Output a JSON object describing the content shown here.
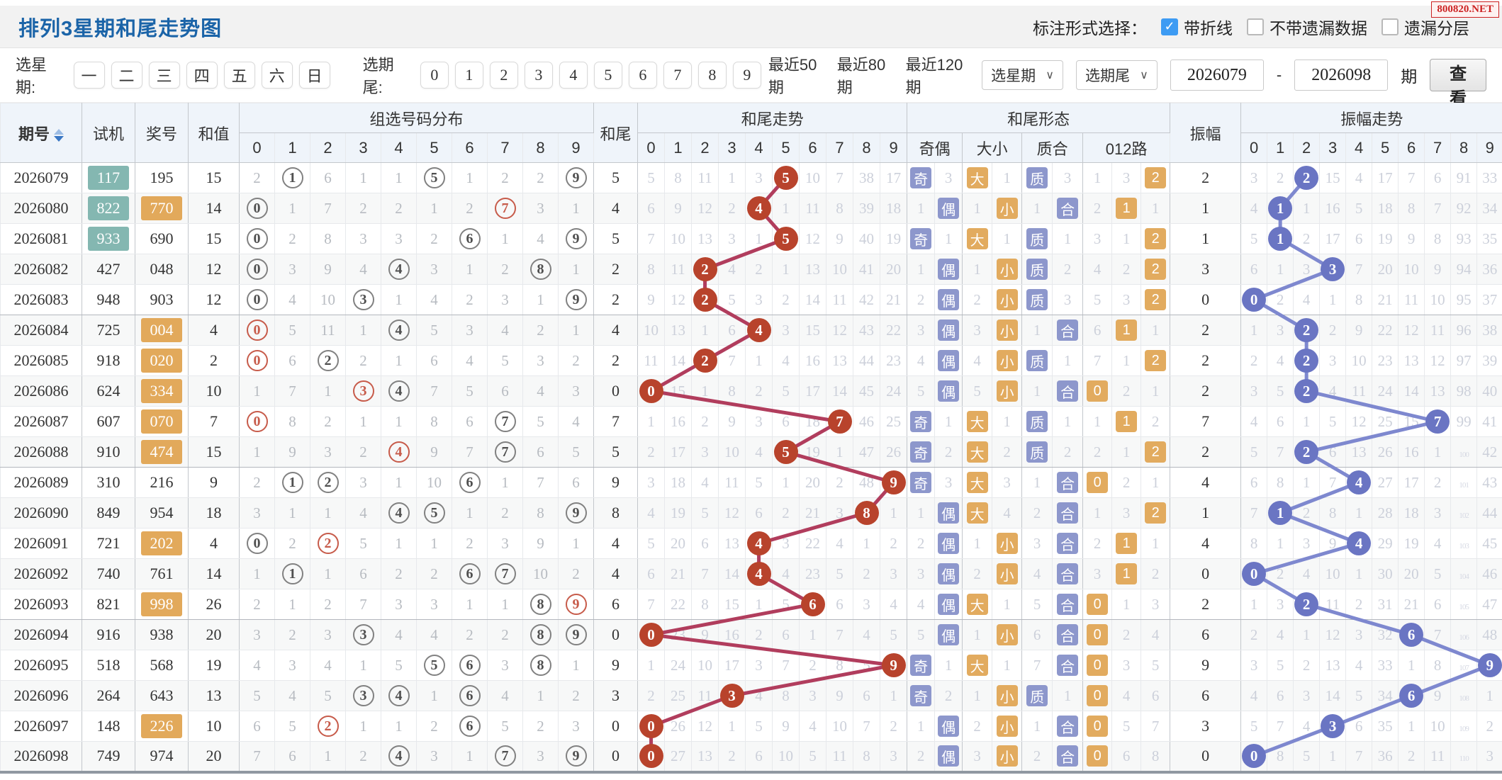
{
  "title": "排列3星期和尾走势图",
  "watermark": "800820.NET",
  "annotation": {
    "label": "标注形式选择：",
    "options": [
      {
        "label": "带折线",
        "checked": true
      },
      {
        "label": "不带遗漏数据",
        "checked": false
      },
      {
        "label": "遗漏分层",
        "checked": false
      }
    ]
  },
  "filters": {
    "week_label": "选星期:",
    "weeks": [
      "一",
      "二",
      "三",
      "四",
      "五",
      "六",
      "日"
    ],
    "tail_label": "选期尾:",
    "tails": [
      "0",
      "1",
      "2",
      "3",
      "4",
      "5",
      "6",
      "7",
      "8",
      "9"
    ],
    "ranges": [
      "最近50期",
      "最近80期",
      "最近120期"
    ],
    "week_select": "选星期",
    "tail_select": "选期尾",
    "from": "2026079",
    "to": "2026098",
    "dash": "-",
    "unit": "期",
    "view": "查看"
  },
  "header": {
    "period": "期号",
    "shiji": "试机",
    "prize": "奖号",
    "sum": "和值",
    "dist": "组选号码分布",
    "tail": "和尾",
    "tail_trend": "和尾走势",
    "pattern": "和尾形态",
    "oe": "奇偶",
    "dx": "大小",
    "zh": "质合",
    "lu": "012路",
    "amp": "振幅",
    "amp_trend": "振幅走势",
    "digits": [
      "0",
      "1",
      "2",
      "3",
      "4",
      "5",
      "6",
      "7",
      "8",
      "9"
    ]
  },
  "colors": {
    "title_blue": "#1b64a8",
    "checkbox_blue": "#3d9bf3",
    "watermark_red": "#cc2222",
    "hit_circle_red": "#b8432c",
    "line_red": "#b13d5d",
    "hit_circle_blue": "#6a75c3",
    "line_blue": "#7e88cf",
    "badge_purple": "#8d97cc",
    "badge_orange": "#e2ab5f",
    "highlight_teal": "#84b7b1",
    "highlight_orange": "#e2a95b"
  },
  "rows": [
    {
      "period": "2026079",
      "shiji": "117",
      "shijiPair": true,
      "prize": "195",
      "prizePair": false,
      "sum": 15,
      "dist": [
        2,
        1,
        6,
        1,
        1,
        5,
        1,
        2,
        2,
        9
      ],
      "dg": [
        1,
        5,
        9
      ],
      "dr": [],
      "tail": 5,
      "tt": [
        5,
        8,
        11,
        1,
        3,
        5,
        10,
        7,
        38,
        17
      ],
      "th": 5,
      "qo": [
        "奇",
        3
      ],
      "dx": [
        "大",
        1
      ],
      "zh": [
        "质",
        3
      ],
      "lu": [
        1,
        3,
        "2"
      ],
      "amp": 2,
      "at": [
        3,
        2,
        2,
        15,
        4,
        17,
        7,
        6,
        91,
        33
      ],
      "ah": 2
    },
    {
      "period": "2026080",
      "shiji": "822",
      "shijiPair": true,
      "prize": "770",
      "prizePair": true,
      "sum": 14,
      "dist": [
        0,
        1,
        7,
        2,
        2,
        1,
        2,
        7,
        3,
        1
      ],
      "dg": [
        0
      ],
      "dr": [
        7
      ],
      "tail": 4,
      "tt": [
        6,
        9,
        12,
        2,
        4,
        1,
        11,
        8,
        39,
        18
      ],
      "th": 4,
      "qo": [
        1,
        "偶"
      ],
      "dx": [
        1,
        "小"
      ],
      "zh": [
        1,
        "合"
      ],
      "lu": [
        2,
        "1",
        1
      ],
      "amp": 1,
      "at": [
        4,
        1,
        1,
        16,
        5,
        18,
        8,
        7,
        92,
        34
      ],
      "ah": 1
    },
    {
      "period": "2026081",
      "shiji": "933",
      "shijiPair": true,
      "prize": "690",
      "prizePair": false,
      "sum": 15,
      "dist": [
        0,
        2,
        8,
        3,
        3,
        2,
        6,
        1,
        4,
        9
      ],
      "dg": [
        0,
        6,
        9
      ],
      "dr": [],
      "tail": 5,
      "tt": [
        7,
        10,
        13,
        3,
        1,
        5,
        12,
        9,
        40,
        19
      ],
      "th": 5,
      "qo": [
        "奇",
        1
      ],
      "dx": [
        "大",
        1
      ],
      "zh": [
        "质",
        1
      ],
      "lu": [
        3,
        1,
        "2"
      ],
      "amp": 1,
      "at": [
        5,
        1,
        2,
        17,
        6,
        19,
        9,
        8,
        93,
        35
      ],
      "ah": 1
    },
    {
      "period": "2026082",
      "shiji": "427",
      "shijiPair": false,
      "prize": "048",
      "prizePair": false,
      "sum": 12,
      "dist": [
        0,
        3,
        9,
        4,
        4,
        3,
        1,
        2,
        8,
        1
      ],
      "dg": [
        0,
        4,
        8
      ],
      "dr": [],
      "tail": 2,
      "tt": [
        8,
        11,
        2,
        4,
        2,
        1,
        13,
        10,
        41,
        20
      ],
      "th": 2,
      "qo": [
        1,
        "偶"
      ],
      "dx": [
        1,
        "小"
      ],
      "zh": [
        "质",
        2
      ],
      "lu": [
        4,
        2,
        "2"
      ],
      "amp": 3,
      "at": [
        6,
        1,
        3,
        3,
        7,
        20,
        10,
        9,
        94,
        36
      ],
      "ah": 3
    },
    {
      "period": "2026083",
      "shiji": "948",
      "shijiPair": false,
      "prize": "903",
      "prizePair": false,
      "sum": 12,
      "dist": [
        0,
        4,
        10,
        3,
        1,
        4,
        2,
        3,
        1,
        9
      ],
      "dg": [
        0,
        3,
        9
      ],
      "dr": [],
      "tail": 2,
      "tt": [
        9,
        12,
        2,
        5,
        3,
        2,
        14,
        11,
        42,
        21
      ],
      "th": 2,
      "qo": [
        2,
        "偶"
      ],
      "dx": [
        2,
        "小"
      ],
      "zh": [
        "质",
        3
      ],
      "lu": [
        5,
        3,
        "2"
      ],
      "amp": 0,
      "at": [
        0,
        2,
        4,
        1,
        8,
        21,
        11,
        10,
        95,
        37
      ],
      "ah": 0
    },
    {
      "period": "2026084",
      "shiji": "725",
      "shijiPair": false,
      "prize": "004",
      "prizePair": true,
      "sum": 4,
      "dist": [
        0,
        5,
        11,
        1,
        4,
        5,
        3,
        4,
        2,
        1
      ],
      "dg": [
        4
      ],
      "dr": [
        0
      ],
      "tail": 4,
      "tt": [
        10,
        13,
        1,
        6,
        4,
        3,
        15,
        12,
        43,
        22
      ],
      "th": 4,
      "qo": [
        3,
        "偶"
      ],
      "dx": [
        3,
        "小"
      ],
      "zh": [
        1,
        "合"
      ],
      "lu": [
        6,
        "1",
        1
      ],
      "amp": 2,
      "at": [
        1,
        3,
        2,
        2,
        9,
        22,
        12,
        11,
        96,
        38
      ],
      "ah": 2
    },
    {
      "period": "2026085",
      "shiji": "918",
      "shijiPair": false,
      "prize": "020",
      "prizePair": true,
      "sum": 2,
      "dist": [
        0,
        6,
        2,
        2,
        1,
        6,
        4,
        5,
        3,
        2
      ],
      "dg": [
        2
      ],
      "dr": [
        0
      ],
      "tail": 2,
      "tt": [
        11,
        14,
        2,
        7,
        1,
        4,
        16,
        13,
        44,
        23
      ],
      "th": 2,
      "qo": [
        4,
        "偶"
      ],
      "dx": [
        4,
        "小"
      ],
      "zh": [
        "质",
        1
      ],
      "lu": [
        7,
        1,
        "2"
      ],
      "amp": 2,
      "at": [
        2,
        4,
        2,
        3,
        10,
        23,
        13,
        12,
        97,
        39
      ],
      "ah": 2
    },
    {
      "period": "2026086",
      "shiji": "624",
      "shijiPair": false,
      "prize": "334",
      "prizePair": true,
      "sum": 10,
      "dist": [
        1,
        7,
        1,
        3,
        4,
        7,
        5,
        6,
        4,
        3
      ],
      "dg": [
        4
      ],
      "dr": [
        3
      ],
      "tail": 0,
      "tt": [
        0,
        15,
        1,
        8,
        2,
        5,
        17,
        14,
        45,
        24
      ],
      "th": 0,
      "qo": [
        5,
        "偶"
      ],
      "dx": [
        5,
        "小"
      ],
      "zh": [
        1,
        "合"
      ],
      "lu": [
        "0",
        2,
        1
      ],
      "amp": 2,
      "at": [
        3,
        5,
        2,
        4,
        11,
        24,
        14,
        13,
        98,
        40
      ],
      "ah": 2
    },
    {
      "period": "2026087",
      "shiji": "607",
      "shijiPair": false,
      "prize": "070",
      "prizePair": true,
      "sum": 7,
      "dist": [
        0,
        8,
        2,
        1,
        1,
        8,
        6,
        7,
        5,
        4
      ],
      "dg": [
        7
      ],
      "dr": [
        0
      ],
      "tail": 7,
      "tt": [
        1,
        16,
        2,
        9,
        3,
        6,
        18,
        7,
        46,
        25
      ],
      "th": 7,
      "qo": [
        "奇",
        1
      ],
      "dx": [
        "大",
        1
      ],
      "zh": [
        "质",
        1
      ],
      "lu": [
        1,
        "1",
        2
      ],
      "amp": 7,
      "at": [
        4,
        6,
        1,
        5,
        12,
        25,
        15,
        7,
        99,
        41
      ],
      "ah": 7
    },
    {
      "period": "2026088",
      "shiji": "910",
      "shijiPair": false,
      "prize": "474",
      "prizePair": true,
      "sum": 15,
      "dist": [
        1,
        9,
        3,
        2,
        4,
        9,
        7,
        7,
        6,
        5
      ],
      "dg": [
        7
      ],
      "dr": [
        4
      ],
      "tail": 5,
      "tt": [
        2,
        17,
        3,
        10,
        4,
        5,
        19,
        1,
        47,
        26
      ],
      "th": 5,
      "qo": [
        "奇",
        2
      ],
      "dx": [
        "大",
        2
      ],
      "zh": [
        "质",
        2
      ],
      "lu": [
        2,
        1,
        "2"
      ],
      "amp": 2,
      "at": [
        5,
        7,
        2,
        6,
        13,
        26,
        16,
        1,
        100,
        42
      ],
      "ah": 2
    },
    {
      "period": "2026089",
      "shiji": "310",
      "shijiPair": false,
      "prize": "216",
      "prizePair": false,
      "sum": 9,
      "dist": [
        2,
        1,
        2,
        3,
        1,
        10,
        6,
        1,
        7,
        6
      ],
      "dg": [
        1,
        2,
        6
      ],
      "dr": [],
      "tail": 9,
      "tt": [
        3,
        18,
        4,
        11,
        5,
        1,
        20,
        2,
        48,
        9
      ],
      "th": 9,
      "qo": [
        "奇",
        3
      ],
      "dx": [
        "大",
        3
      ],
      "zh": [
        1,
        "合"
      ],
      "lu": [
        "0",
        2,
        1
      ],
      "amp": 4,
      "at": [
        6,
        8,
        1,
        7,
        4,
        27,
        17,
        2,
        101,
        43
      ],
      "ah": 4
    },
    {
      "period": "2026090",
      "shiji": "849",
      "shijiPair": false,
      "prize": "954",
      "prizePair": false,
      "sum": 18,
      "dist": [
        3,
        1,
        1,
        4,
        4,
        5,
        1,
        2,
        8,
        9
      ],
      "dg": [
        4,
        5,
        9
      ],
      "dr": [],
      "tail": 8,
      "tt": [
        4,
        19,
        5,
        12,
        6,
        2,
        21,
        3,
        8,
        1
      ],
      "th": 8,
      "qo": [
        1,
        "偶"
      ],
      "dx": [
        "大",
        4
      ],
      "zh": [
        2,
        "合"
      ],
      "lu": [
        1,
        3,
        "2"
      ],
      "amp": 1,
      "at": [
        7,
        1,
        2,
        8,
        1,
        28,
        18,
        3,
        102,
        44
      ],
      "ah": 1
    },
    {
      "period": "2026091",
      "shiji": "721",
      "shijiPair": false,
      "prize": "202",
      "prizePair": true,
      "sum": 4,
      "dist": [
        0,
        2,
        2,
        5,
        1,
        1,
        2,
        3,
        9,
        1
      ],
      "dg": [
        0
      ],
      "dr": [
        2
      ],
      "tail": 4,
      "tt": [
        5,
        20,
        6,
        13,
        4,
        3,
        22,
        4,
        1,
        2
      ],
      "th": 4,
      "qo": [
        2,
        "偶"
      ],
      "dx": [
        1,
        "小"
      ],
      "zh": [
        3,
        "合"
      ],
      "lu": [
        2,
        "1",
        1
      ],
      "amp": 4,
      "at": [
        8,
        1,
        3,
        9,
        4,
        29,
        19,
        4,
        103,
        45
      ],
      "ah": 4
    },
    {
      "period": "2026092",
      "shiji": "740",
      "shijiPair": false,
      "prize": "761",
      "prizePair": false,
      "sum": 14,
      "dist": [
        1,
        1,
        1,
        6,
        2,
        2,
        6,
        7,
        10,
        2
      ],
      "dg": [
        1,
        6,
        7
      ],
      "dr": [],
      "tail": 4,
      "tt": [
        6,
        21,
        7,
        14,
        4,
        4,
        23,
        5,
        2,
        3
      ],
      "th": 4,
      "qo": [
        3,
        "偶"
      ],
      "dx": [
        2,
        "小"
      ],
      "zh": [
        4,
        "合"
      ],
      "lu": [
        3,
        "1",
        2
      ],
      "amp": 0,
      "at": [
        0,
        2,
        4,
        10,
        1,
        30,
        20,
        5,
        104,
        46
      ],
      "ah": 0
    },
    {
      "period": "2026093",
      "shiji": "821",
      "shijiPair": false,
      "prize": "998",
      "prizePair": true,
      "sum": 26,
      "dist": [
        2,
        1,
        2,
        7,
        3,
        3,
        1,
        1,
        8,
        9
      ],
      "dg": [
        8
      ],
      "dr": [
        9
      ],
      "tail": 6,
      "tt": [
        7,
        22,
        8,
        15,
        1,
        5,
        6,
        6,
        3,
        4
      ],
      "th": 6,
      "qo": [
        4,
        "偶"
      ],
      "dx": [
        "大",
        1
      ],
      "zh": [
        5,
        "合"
      ],
      "lu": [
        "0",
        1,
        3
      ],
      "amp": 2,
      "at": [
        1,
        3,
        2,
        11,
        2,
        31,
        21,
        6,
        105,
        47
      ],
      "ah": 2
    },
    {
      "period": "2026094",
      "shiji": "916",
      "shijiPair": false,
      "prize": "938",
      "prizePair": false,
      "sum": 20,
      "dist": [
        3,
        2,
        3,
        3,
        4,
        4,
        2,
        2,
        8,
        9
      ],
      "dg": [
        3,
        8,
        9
      ],
      "dr": [],
      "tail": 0,
      "tt": [
        0,
        23,
        9,
        16,
        2,
        6,
        1,
        7,
        4,
        5
      ],
      "th": 0,
      "qo": [
        5,
        "偶"
      ],
      "dx": [
        1,
        "小"
      ],
      "zh": [
        6,
        "合"
      ],
      "lu": [
        "0",
        2,
        4
      ],
      "amp": 6,
      "at": [
        2,
        4,
        1,
        12,
        3,
        32,
        6,
        7,
        106,
        48
      ],
      "ah": 6
    },
    {
      "period": "2026095",
      "shiji": "518",
      "shijiPair": false,
      "prize": "568",
      "prizePair": false,
      "sum": 19,
      "dist": [
        4,
        3,
        4,
        1,
        5,
        5,
        6,
        3,
        8,
        1
      ],
      "dg": [
        5,
        6,
        8
      ],
      "dr": [],
      "tail": 9,
      "tt": [
        1,
        24,
        10,
        17,
        3,
        7,
        2,
        8,
        5,
        9
      ],
      "th": 9,
      "qo": [
        "奇",
        1
      ],
      "dx": [
        "大",
        1
      ],
      "zh": [
        7,
        "合"
      ],
      "lu": [
        "0",
        3,
        5
      ],
      "amp": 9,
      "at": [
        3,
        5,
        2,
        13,
        4,
        33,
        1,
        8,
        107,
        9
      ],
      "ah": 9
    },
    {
      "period": "2026096",
      "shiji": "264",
      "shijiPair": false,
      "prize": "643",
      "prizePair": false,
      "sum": 13,
      "dist": [
        5,
        4,
        5,
        3,
        4,
        1,
        6,
        4,
        1,
        2
      ],
      "dg": [
        3,
        4,
        6
      ],
      "dr": [],
      "tail": 3,
      "tt": [
        2,
        25,
        11,
        3,
        4,
        8,
        3,
        9,
        6,
        1
      ],
      "th": 3,
      "qo": [
        "奇",
        2
      ],
      "dx": [
        1,
        "小"
      ],
      "zh": [
        "质",
        1
      ],
      "lu": [
        "0",
        4,
        6
      ],
      "amp": 6,
      "at": [
        4,
        6,
        3,
        14,
        5,
        34,
        6,
        9,
        108,
        1
      ],
      "ah": 6
    },
    {
      "period": "2026097",
      "shiji": "148",
      "shijiPair": false,
      "prize": "226",
      "prizePair": true,
      "sum": 10,
      "dist": [
        6,
        5,
        2,
        1,
        1,
        2,
        6,
        5,
        2,
        3
      ],
      "dg": [
        6
      ],
      "dr": [
        2
      ],
      "tail": 0,
      "tt": [
        0,
        26,
        12,
        1,
        5,
        9,
        4,
        10,
        7,
        2
      ],
      "th": 0,
      "qo": [
        1,
        "偶"
      ],
      "dx": [
        2,
        "小"
      ],
      "zh": [
        1,
        "合"
      ],
      "lu": [
        "0",
        5,
        7
      ],
      "amp": 3,
      "at": [
        5,
        7,
        4,
        3,
        6,
        35,
        1,
        10,
        109,
        2
      ],
      "ah": 3
    },
    {
      "period": "2026098",
      "shiji": "749",
      "shijiPair": false,
      "prize": "974",
      "prizePair": false,
      "sum": 20,
      "dist": [
        7,
        6,
        1,
        2,
        4,
        3,
        1,
        7,
        3,
        9
      ],
      "dg": [
        4,
        7,
        9
      ],
      "dr": [],
      "tail": 0,
      "tt": [
        0,
        27,
        13,
        2,
        6,
        10,
        5,
        11,
        8,
        3
      ],
      "th": 0,
      "qo": [
        2,
        "偶"
      ],
      "dx": [
        3,
        "小"
      ],
      "zh": [
        2,
        "合"
      ],
      "lu": [
        "0",
        6,
        8
      ],
      "amp": 0,
      "at": [
        0,
        8,
        5,
        1,
        7,
        36,
        2,
        11,
        110,
        3
      ],
      "ah": 0
    }
  ]
}
